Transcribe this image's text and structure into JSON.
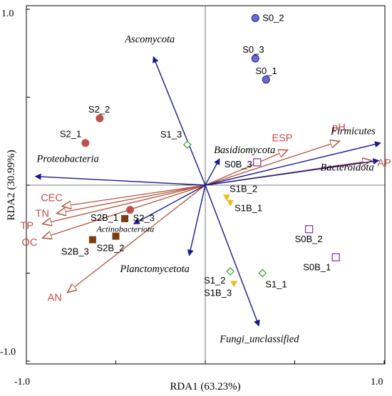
{
  "chart_data": {
    "type": "scatter",
    "subtype": "rda-triplot",
    "xlabel": "RDA1 (63.23%)",
    "ylabel": "RDA2 (30.99%)",
    "xlim": [
      -1.0,
      1.0
    ],
    "ylim": [
      -1.0,
      1.0
    ],
    "x_tick_labels": [
      "-1.0",
      "1.0"
    ],
    "y_tick_labels": [
      "1.0",
      "-1.0"
    ],
    "grid": false,
    "zero_lines": true,
    "colors": {
      "species_arrow": "#1a1a8c",
      "env_arrow": "#b4543e",
      "env_label": "#c0504d",
      "axis": "#000000",
      "zero_line": "#555555"
    },
    "sample_groups": [
      {
        "group": "S0",
        "marker": "circle",
        "color": "#6a6ad0",
        "stroke": "#20208a"
      },
      {
        "group": "S1",
        "marker": "diamond-open",
        "color": "#3a9a2a"
      },
      {
        "group": "S1B",
        "marker": "triangle-down",
        "color": "#e8c020"
      },
      {
        "group": "S0B",
        "marker": "square-open",
        "color": "#8a3aa8"
      },
      {
        "group": "S2",
        "marker": "circle",
        "color": "#c0504d",
        "stroke": "#c0504d"
      },
      {
        "group": "S2B",
        "marker": "square",
        "color": "#7a3e12"
      }
    ],
    "samples": [
      {
        "name": "S0_2",
        "group": "S0",
        "x": 0.28,
        "y": 0.95
      },
      {
        "name": "S0_3",
        "group": "S0",
        "x": 0.28,
        "y": 0.72
      },
      {
        "name": "S0_1",
        "group": "S0",
        "x": 0.34,
        "y": 0.6
      },
      {
        "name": "S2_2",
        "group": "S2",
        "x": -0.59,
        "y": 0.38
      },
      {
        "name": "S2_1",
        "group": "S2",
        "x": -0.67,
        "y": 0.24
      },
      {
        "name": "S1_3",
        "group": "S1",
        "x": -0.1,
        "y": 0.23
      },
      {
        "name": "S0B_3",
        "group": "S0B",
        "x": 0.29,
        "y": 0.13
      },
      {
        "name": "S1B_2",
        "group": "S1B",
        "x": 0.12,
        "y": -0.07
      },
      {
        "name": "S1B_1",
        "group": "S1B",
        "x": 0.14,
        "y": -0.1
      },
      {
        "name": "S2B_1",
        "group": "S2B",
        "x": -0.45,
        "y": -0.19
      },
      {
        "name": "S2_3",
        "group": "S2",
        "x": -0.42,
        "y": -0.14
      },
      {
        "name": "S2B_3",
        "group": "S2B",
        "x": -0.63,
        "y": -0.31
      },
      {
        "name": "S2B_2",
        "group": "S2B",
        "x": -0.5,
        "y": -0.29
      },
      {
        "name": "S0B_2",
        "group": "S0B",
        "x": 0.58,
        "y": -0.25
      },
      {
        "name": "S0B_1",
        "group": "S0B",
        "x": 0.73,
        "y": -0.41
      },
      {
        "name": "S1_2",
        "group": "S1",
        "x": 0.14,
        "y": -0.49
      },
      {
        "name": "S1B_3",
        "group": "S1B",
        "x": 0.16,
        "y": -0.56
      },
      {
        "name": "S1_1",
        "group": "S1",
        "x": 0.32,
        "y": -0.5
      }
    ],
    "species": [
      {
        "name": "Ascomycota",
        "x": -0.29,
        "y": 0.73
      },
      {
        "name": "Basidiomycota",
        "x": 0.08,
        "y": 0.15
      },
      {
        "name": "Firmicutes",
        "x": 0.98,
        "y": 0.24
      },
      {
        "name": "Bacteroidota",
        "x": 0.97,
        "y": 0.14
      },
      {
        "name": "Proteobacteria",
        "x": -0.95,
        "y": 0.05
      },
      {
        "name": "Actinobacteriota",
        "x": -0.4,
        "y": -0.22
      },
      {
        "name": "Planctomycetota",
        "x": -0.09,
        "y": -0.4
      },
      {
        "name": "Fungi_unclassified",
        "x": 0.3,
        "y": -0.8
      }
    ],
    "environment": [
      {
        "name": "ESP",
        "x": 0.46,
        "y": 0.2
      },
      {
        "name": "pH",
        "x": 0.75,
        "y": 0.25
      },
      {
        "name": "AP",
        "x": 0.93,
        "y": 0.14
      },
      {
        "name": "CEC",
        "x": -0.8,
        "y": -0.12
      },
      {
        "name": "TN",
        "x": -0.83,
        "y": -0.16
      },
      {
        "name": "TP",
        "x": -0.91,
        "y": -0.22
      },
      {
        "name": "OC",
        "x": -0.91,
        "y": -0.3
      },
      {
        "name": "AN",
        "x": -0.77,
        "y": -0.61
      }
    ]
  }
}
